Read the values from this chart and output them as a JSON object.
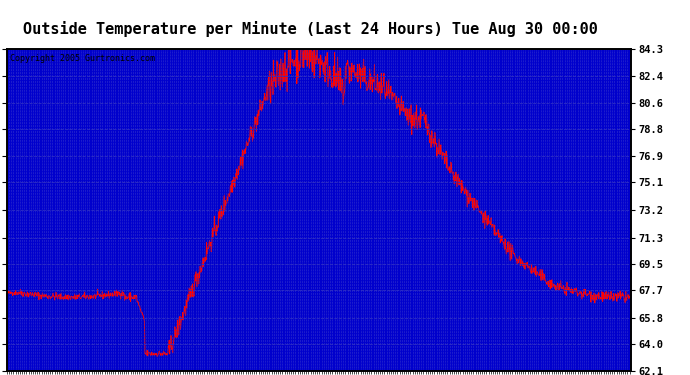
{
  "title": "Outside Temperature per Minute (Last 24 Hours) Tue Aug 30 00:00",
  "copyright": "Copyright 2005 Gurtronics.com",
  "yticks": [
    62.1,
    64.0,
    65.8,
    67.7,
    69.5,
    71.3,
    73.2,
    75.1,
    76.9,
    78.8,
    80.6,
    82.4,
    84.3
  ],
  "ymin": 62.1,
  "ymax": 84.3,
  "plot_bg_color": "#0000cc",
  "line_color": "#ff0000",
  "grid_color_dash": "#4040ff",
  "grid_color_dot": "#2020aa",
  "title_fontsize": 11,
  "copyright_fontsize": 6,
  "ylabel_fontsize": 8,
  "xlabel_fontsize": 5
}
